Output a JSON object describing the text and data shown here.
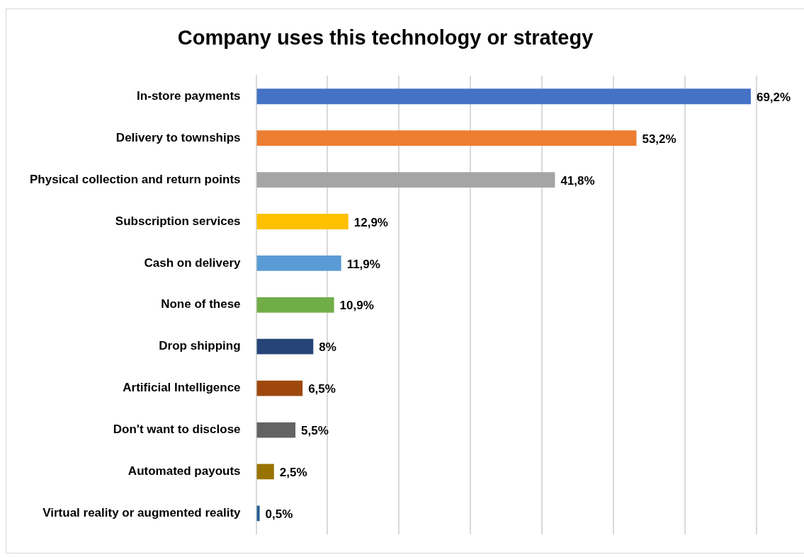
{
  "chart_data": {
    "type": "bar",
    "orientation": "horizontal",
    "title": "Company uses this technology or strategy",
    "categories": [
      "In-store payments",
      "Delivery to townships",
      "Physical collection and return points",
      "Subscription services",
      "Cash on delivery",
      "None of these",
      "Drop shipping",
      "Artificial Intelligence",
      "Don't want to disclose",
      "Automated payouts",
      "Virtual reality or augmented reality"
    ],
    "values": [
      69.2,
      53.2,
      41.8,
      12.9,
      11.9,
      10.9,
      8,
      6.5,
      5.5,
      2.5,
      0.5
    ],
    "colors": [
      "#4472c4",
      "#ed7d31",
      "#a5a5a5",
      "#ffc000",
      "#5b9bd5",
      "#70ad47",
      "#264478",
      "#9e480e",
      "#636363",
      "#997300",
      "#255e91"
    ],
    "value_labels": [
      "69,2%",
      "53,2%",
      "41,8%",
      "12,9%",
      "11,9%",
      "10,9%",
      "8%",
      "6,5%",
      "5,5%",
      "2,5%",
      "0,5%"
    ],
    "xlim": [
      0,
      70
    ],
    "xticks": [
      {
        "value": 0,
        "label": null
      },
      {
        "value": 10,
        "label": null
      },
      {
        "value": 20,
        "label": null
      },
      {
        "value": 30,
        "label": null
      },
      {
        "value": 40,
        "label": null
      },
      {
        "value": 50,
        "label": null
      },
      {
        "value": 60,
        "label": null
      },
      {
        "value": 70,
        "label": null
      }
    ],
    "tick_labels": "y",
    "grid": "x",
    "legend": false
  }
}
